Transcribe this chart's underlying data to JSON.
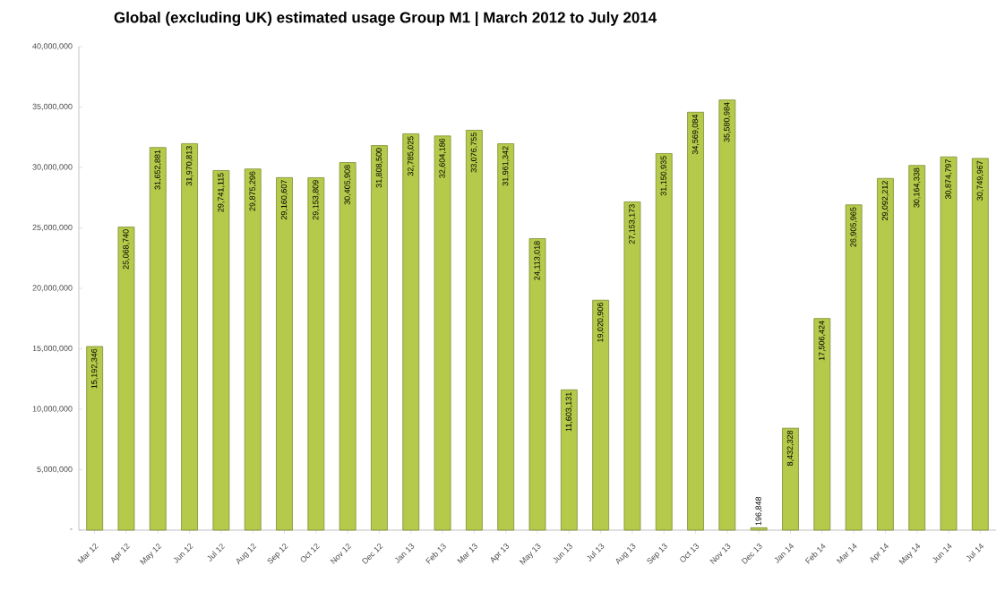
{
  "chart_data": {
    "type": "bar",
    "title": "Global (excluding UK) estimated usage Group M1 | March 2012 to July 2014",
    "categories": [
      "Mar 12",
      "Apr 12",
      "May 12",
      "Jun 12",
      "Jul 12",
      "Aug 12",
      "Sep 12",
      "Oct 12",
      "Nov 12",
      "Dec 12",
      "Jan 13",
      "Feb 13",
      "Mar 13",
      "Apr 13",
      "May 13",
      "Jun 13",
      "Jul 13",
      "Aug 13",
      "Sep 13",
      "Oct 13",
      "Nov 13",
      "Dec 13",
      "Jan 14",
      "Feb 14",
      "Mar 14",
      "Apr 14",
      "May 14",
      "Jun 14",
      "Jul 14"
    ],
    "values": [
      15192346,
      25068740,
      31652881,
      31970813,
      29741115,
      29875296,
      29160607,
      29153809,
      30405908,
      31808500,
      32785025,
      32604186,
      33076755,
      31961342,
      24113018,
      11603131,
      19020906,
      27153173,
      31150935,
      34569084,
      35580984,
      196848,
      8432328,
      17506424,
      26905965,
      29092212,
      30164338,
      30874797,
      30749967
    ],
    "value_labels": [
      "15,192,346",
      "25,068,740",
      "31,652,881",
      "31,970,813",
      "29,741,115",
      "29,875,296",
      "29,160,607",
      "29,153,809",
      "30,405,908",
      "31,808,500",
      "32,785,025",
      "32,604,186",
      "33,076,755",
      "31,961,342",
      "24,113,018",
      "11,603,131",
      "19,020,906",
      "27,153,173",
      "31,150,935",
      "34,569,084",
      "35,580,984",
      "196,848",
      "8,432,328",
      "17,506,424",
      "26,905,965",
      "29,092,212",
      "30,164,338",
      "30,874,797",
      "30,749,967"
    ],
    "color": "#b5c94a",
    "ylim": [
      0,
      40000000
    ],
    "yticks": [
      {
        "value": 0,
        "label": "-"
      },
      {
        "value": 5000000,
        "label": "5,000,000"
      },
      {
        "value": 10000000,
        "label": "10,000,000"
      },
      {
        "value": 15000000,
        "label": "15,000,000"
      },
      {
        "value": 20000000,
        "label": "20,000,000"
      },
      {
        "value": 25000000,
        "label": "25,000,000"
      },
      {
        "value": 30000000,
        "label": "30,000,000"
      },
      {
        "value": 35000000,
        "label": "35,000,000"
      },
      {
        "value": 40000000,
        "label": "40,000,000"
      }
    ]
  }
}
